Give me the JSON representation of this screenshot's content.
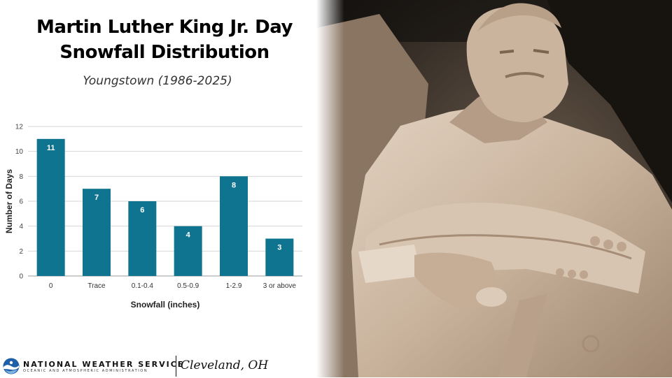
{
  "title_line1": "Martin Luther King Jr. Day",
  "title_line2": "Snowfall Distribution",
  "subtitle": "Youngstown (1986-2025)",
  "footer": {
    "agency": "NATIONAL WEATHER SERVICE",
    "agency_sub": "OCEANIC AND ATMOSPHERIC ADMINISTRATION",
    "office": "Cleveland, OH",
    "logo_icon": "noaa-logo-icon"
  },
  "photo": {
    "subject": "memorial-statue-photo"
  },
  "colors": {
    "bar": "#0e7490",
    "grid": "#d6d6d6",
    "label": "#ffffff"
  },
  "chart_data": {
    "type": "bar",
    "categories": [
      "0",
      "Trace",
      "0.1-0.4",
      "0.5-0.9",
      "1-2.9",
      "3 or above"
    ],
    "values": [
      11,
      7,
      6,
      4,
      8,
      3
    ],
    "xlabel": "Snowfall (inches)",
    "ylabel": "Number of Days",
    "ylim": [
      0,
      12
    ],
    "yticks": [
      0,
      2,
      4,
      6,
      8,
      10,
      12
    ],
    "grid": true,
    "data_labels": true
  }
}
